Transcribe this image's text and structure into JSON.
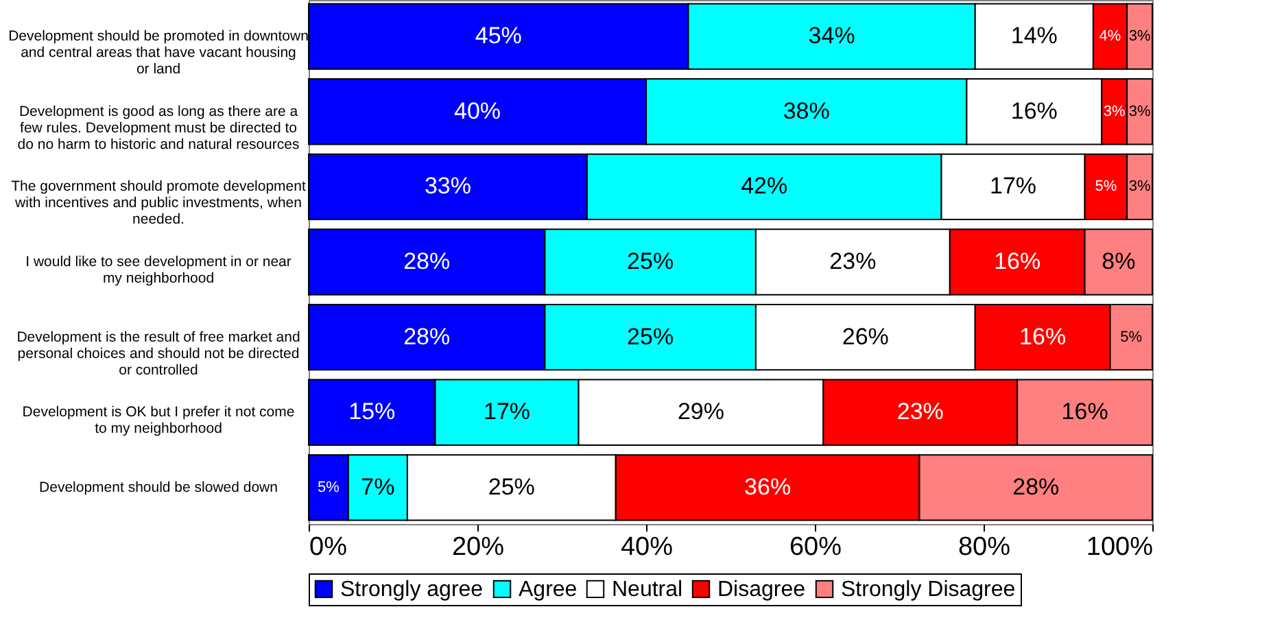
{
  "chart_data": {
    "type": "bar",
    "orientation": "horizontal",
    "stacked": true,
    "categories": [
      "Development should be promoted in downtown and central areas that have vacant housing or land",
      "Development is good as long as there are a few rules.  Development must be directed to do no harm to historic and natural resources",
      "The government should promote development with incentives and public investments, when needed.",
      "I would like to see development in or near my neighborhood",
      "Development is the result of free market and personal choices and should not be directed or controlled",
      "Development is OK but I prefer it not come to my neighborhood",
      "Development should be slowed down"
    ],
    "series": [
      {
        "name": "Strongly agree",
        "color": "#0000ff",
        "values": [
          45,
          40,
          33,
          28,
          28,
          15,
          4.7
        ],
        "value_labels": [
          "45%",
          "40%",
          "33%",
          "28%",
          "28%",
          "15%",
          "5%"
        ]
      },
      {
        "name": "Agree",
        "color": "#00ffff",
        "values": [
          34,
          38,
          42,
          25,
          25,
          17,
          7
        ],
        "value_labels": [
          "34%",
          "38%",
          "42%",
          "25%",
          "25%",
          "17%",
          "7%"
        ]
      },
      {
        "name": "Neutral",
        "color": "#ffffff",
        "values": [
          14,
          16,
          17,
          23,
          26,
          29,
          24.7
        ],
        "value_labels": [
          "14%",
          "16%",
          "17%",
          "23%",
          "26%",
          "29%",
          "25%"
        ]
      },
      {
        "name": "Disagree",
        "color": "#ff0000",
        "values": [
          4,
          3,
          5,
          16,
          16,
          23,
          36
        ],
        "value_labels": [
          "4%",
          "3%",
          "5%",
          "16%",
          "16%",
          "23%",
          "36%"
        ]
      },
      {
        "name": "Strongly Disagree",
        "color": "#ff8080",
        "values": [
          3,
          3,
          3,
          8,
          5,
          16,
          27.6
        ],
        "value_labels": [
          "3%",
          "3%",
          "3%",
          "8%",
          "5%",
          "16%",
          "28%"
        ]
      }
    ],
    "xlim": [
      0,
      100
    ],
    "xticks": [
      {
        "value": 0,
        "label": "0%"
      },
      {
        "value": 20,
        "label": "20%"
      },
      {
        "value": 40,
        "label": "40%"
      },
      {
        "value": 60,
        "label": "60%"
      },
      {
        "value": 80,
        "label": "80%"
      },
      {
        "value": 100,
        "label": "100%"
      }
    ],
    "legend": "bottom",
    "grid": false
  }
}
